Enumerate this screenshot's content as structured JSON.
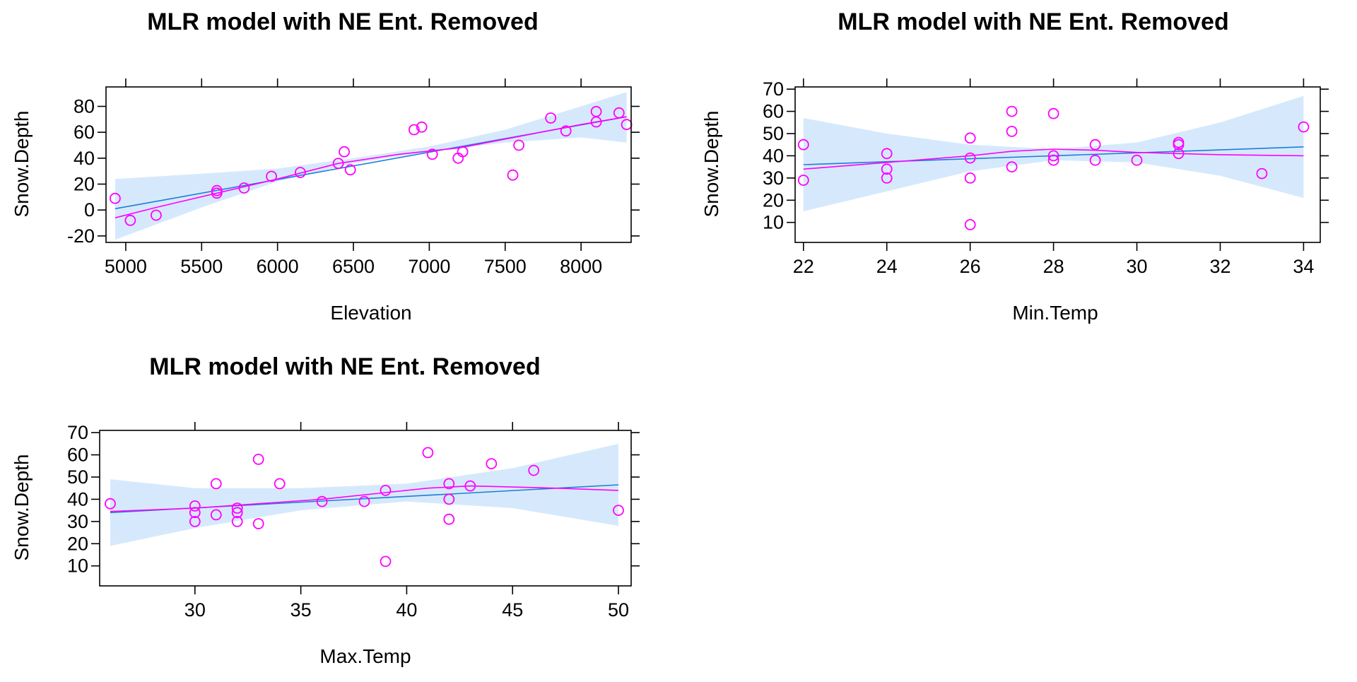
{
  "colors": {
    "band": "#d6e9fc",
    "fit": "#1f7dd6",
    "smooth": "#ff00ff",
    "points": "#ff00ff",
    "axis": "#000000"
  },
  "chart_data": [
    {
      "type": "scatter",
      "title": "MLR model with NE Ent. Removed",
      "xlabel": "Elevation",
      "ylabel": "Snow.Depth",
      "xlim": [
        4870,
        8330
      ],
      "ylim": [
        -25,
        95
      ],
      "xticks": [
        5000,
        5500,
        6000,
        6500,
        7000,
        7500,
        8000
      ],
      "yticks": [
        -20,
        0,
        20,
        40,
        60,
        80
      ],
      "points": [
        [
          4930,
          9
        ],
        [
          5030,
          -8
        ],
        [
          5200,
          -4
        ],
        [
          5600,
          13
        ],
        [
          5600,
          15
        ],
        [
          5780,
          17
        ],
        [
          5960,
          26
        ],
        [
          6150,
          29
        ],
        [
          6400,
          36
        ],
        [
          6440,
          45
        ],
        [
          6480,
          31
        ],
        [
          6900,
          62
        ],
        [
          6950,
          64
        ],
        [
          7020,
          43
        ],
        [
          7190,
          40
        ],
        [
          7220,
          45
        ],
        [
          7550,
          27
        ],
        [
          7590,
          50
        ],
        [
          7800,
          71
        ],
        [
          7900,
          61
        ],
        [
          8100,
          68
        ],
        [
          8100,
          76
        ],
        [
          8250,
          75
        ],
        [
          8300,
          66
        ]
      ],
      "fit_line": [
        [
          4930,
          1
        ],
        [
          8300,
          72
        ]
      ],
      "band_lower": [
        [
          4930,
          -23
        ],
        [
          5500,
          2
        ],
        [
          6000,
          22
        ],
        [
          6500,
          36
        ],
        [
          7000,
          45
        ],
        [
          7500,
          52
        ],
        [
          8000,
          56
        ],
        [
          8300,
          52
        ]
      ],
      "band_upper": [
        [
          4930,
          24
        ],
        [
          5500,
          28
        ],
        [
          6000,
          32
        ],
        [
          6500,
          40
        ],
        [
          7000,
          49
        ],
        [
          7500,
          62
        ],
        [
          8000,
          80
        ],
        [
          8300,
          91
        ]
      ],
      "smooth_line": [
        [
          4930,
          -6
        ],
        [
          5200,
          2
        ],
        [
          5600,
          13
        ],
        [
          6000,
          24
        ],
        [
          6400,
          36
        ],
        [
          6800,
          43
        ],
        [
          7200,
          48
        ],
        [
          7600,
          57
        ],
        [
          8000,
          66
        ],
        [
          8300,
          72
        ]
      ]
    },
    {
      "type": "scatter",
      "title": "MLR model with NE Ent. Removed",
      "xlabel": "Min.Temp",
      "ylabel": "Snow.Depth",
      "xlim": [
        21.8,
        34.4
      ],
      "ylim": [
        1,
        71
      ],
      "xticks": [
        22,
        24,
        26,
        28,
        30,
        32,
        34
      ],
      "yticks": [
        10,
        20,
        30,
        40,
        50,
        60,
        70
      ],
      "points": [
        [
          22,
          29
        ],
        [
          22,
          45
        ],
        [
          24,
          30
        ],
        [
          24,
          34
        ],
        [
          24,
          41
        ],
        [
          26,
          9
        ],
        [
          26,
          30
        ],
        [
          26,
          39
        ],
        [
          26,
          48
        ],
        [
          27,
          35
        ],
        [
          27,
          51
        ],
        [
          27,
          60
        ],
        [
          28,
          38
        ],
        [
          28,
          40
        ],
        [
          28,
          59
        ],
        [
          29,
          38
        ],
        [
          29,
          45
        ],
        [
          30,
          38
        ],
        [
          31,
          41
        ],
        [
          31,
          45
        ],
        [
          31,
          46
        ],
        [
          33,
          32
        ],
        [
          34,
          53
        ]
      ],
      "fit_line": [
        [
          22,
          36
        ],
        [
          34,
          44
        ]
      ],
      "band_lower": [
        [
          22,
          15
        ],
        [
          24,
          24
        ],
        [
          26,
          33
        ],
        [
          28,
          38
        ],
        [
          30,
          37
        ],
        [
          32,
          31
        ],
        [
          34,
          21
        ]
      ],
      "band_upper": [
        [
          22,
          57
        ],
        [
          24,
          50
        ],
        [
          26,
          45
        ],
        [
          28,
          43
        ],
        [
          30,
          46
        ],
        [
          32,
          55
        ],
        [
          34,
          67
        ]
      ],
      "smooth_line": [
        [
          22,
          34
        ],
        [
          24,
          37
        ],
        [
          26,
          40
        ],
        [
          27,
          42
        ],
        [
          28,
          43
        ],
        [
          29,
          42.5
        ],
        [
          30,
          41.5
        ],
        [
          31,
          41
        ],
        [
          32,
          40.5
        ],
        [
          34,
          40
        ]
      ]
    },
    {
      "type": "scatter",
      "title": "MLR model with NE Ent. Removed",
      "xlabel": "Max.Temp",
      "ylabel": "Snow.Depth",
      "xlim": [
        25.5,
        50.6
      ],
      "ylim": [
        1,
        71
      ],
      "xticks": [
        30,
        35,
        40,
        45,
        50
      ],
      "yticks": [
        10,
        20,
        30,
        40,
        50,
        60,
        70
      ],
      "points": [
        [
          26,
          38
        ],
        [
          30,
          30
        ],
        [
          30,
          34
        ],
        [
          30,
          37
        ],
        [
          31,
          33
        ],
        [
          31,
          47
        ],
        [
          32,
          30
        ],
        [
          32,
          34
        ],
        [
          32,
          36
        ],
        [
          33,
          29
        ],
        [
          33,
          58
        ],
        [
          34,
          47
        ],
        [
          36,
          39
        ],
        [
          38,
          39
        ],
        [
          39,
          12
        ],
        [
          39,
          44
        ],
        [
          41,
          61
        ],
        [
          42,
          31
        ],
        [
          42,
          40
        ],
        [
          42,
          47
        ],
        [
          43,
          46
        ],
        [
          44,
          56
        ],
        [
          46,
          53
        ],
        [
          50,
          35
        ]
      ],
      "fit_line": [
        [
          26,
          34
        ],
        [
          50,
          46.5
        ]
      ],
      "band_lower": [
        [
          26,
          19
        ],
        [
          30,
          27
        ],
        [
          35,
          35
        ],
        [
          40,
          39
        ],
        [
          45,
          36
        ],
        [
          50,
          28
        ]
      ],
      "band_upper": [
        [
          26,
          49
        ],
        [
          30,
          45
        ],
        [
          35,
          45
        ],
        [
          40,
          47
        ],
        [
          45,
          54
        ],
        [
          50,
          65
        ]
      ],
      "smooth_line": [
        [
          26,
          34.5
        ],
        [
          30,
          36
        ],
        [
          33,
          38
        ],
        [
          36,
          40
        ],
        [
          39,
          43
        ],
        [
          41,
          45
        ],
        [
          43,
          46
        ],
        [
          45,
          45.5
        ],
        [
          47,
          45
        ],
        [
          50,
          44
        ]
      ]
    }
  ]
}
